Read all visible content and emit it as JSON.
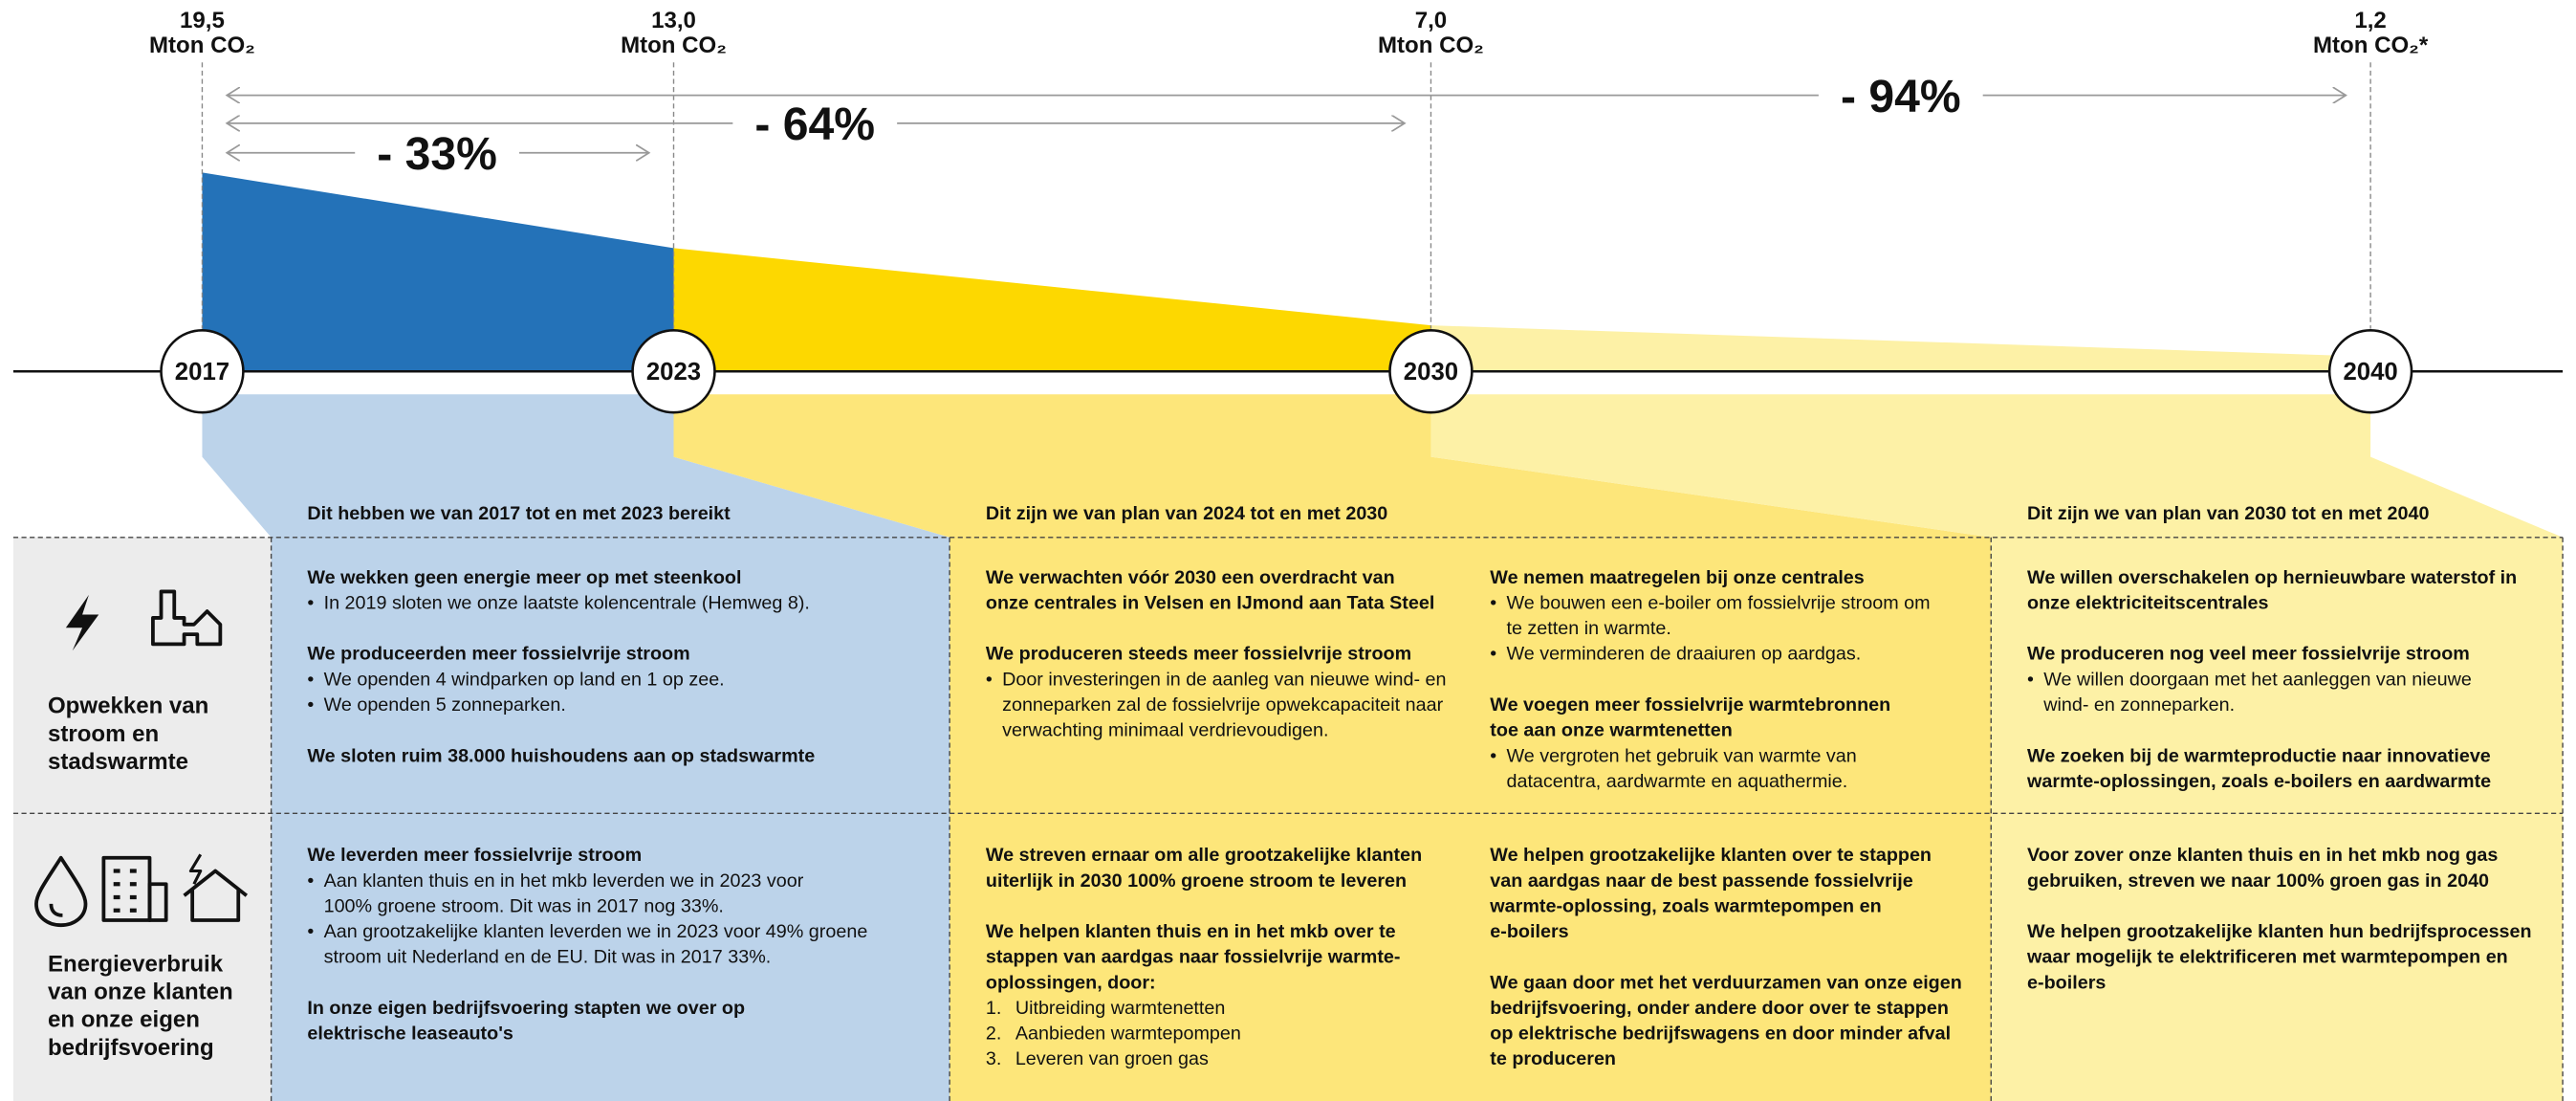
{
  "timeline": {
    "milestones": [
      {
        "year": "2017",
        "value": "19,5",
        "unit": "Mton CO₂"
      },
      {
        "year": "2023",
        "value": "13,0",
        "unit": "Mton CO₂"
      },
      {
        "year": "2030",
        "value": "7,0",
        "unit": "Mton CO₂"
      },
      {
        "year": "2040",
        "value": "1,2",
        "unit": "Mton CO₂*"
      }
    ],
    "reductions": [
      "- 33%",
      "- 64%",
      "- 94%"
    ]
  },
  "headings": [
    "Dit hebben we van 2017 tot en met 2023 bereikt",
    "Dit zijn we van plan van 2024 tot en met 2030",
    "Dit zijn we van plan van 2030 tot en met 2040"
  ],
  "rows": [
    {
      "label": [
        "Opwekken van",
        "stroom en",
        "stadswarmte"
      ],
      "cells": [
        [
          {
            "title": [
              "We wekken geen energie meer op met steenkool"
            ],
            "items": [
              {
                "lines": [
                  "In 2019 sloten we onze laatste kolencentrale (Hemweg 8)."
                ]
              }
            ]
          },
          {
            "title": [
              "We produceerden meer fossielvrije stroom"
            ],
            "items": [
              {
                "lines": [
                  "We openden 4 windparken op land en 1 op zee."
                ]
              },
              {
                "lines": [
                  "We openden 5 zonneparken."
                ]
              }
            ]
          },
          {
            "title": [
              "We sloten ruim 38.000 huishoudens aan op stadswarmte"
            ],
            "items": []
          }
        ],
        [
          {
            "title": [
              "We verwachten vóór 2030 een overdracht van",
              "onze centrales in Velsen en IJmond aan Tata Steel"
            ],
            "items": []
          },
          {
            "title": [
              "We produceren steeds meer fossielvrije stroom"
            ],
            "items": [
              {
                "lines": [
                  "Door investeringen in de aanleg van nieuwe wind- en",
                  "zonneparken zal de fossielvrije opwekcapaciteit naar",
                  "verwachting minimaal verdrievoudigen."
                ]
              }
            ]
          }
        ],
        [
          {
            "title": [
              "We nemen maatregelen bij onze centrales"
            ],
            "items": [
              {
                "lines": [
                  "We bouwen een e-boiler om fossielvrije stroom om",
                  "te zetten in warmte."
                ]
              },
              {
                "lines": [
                  "We verminderen de draaiuren op aardgas."
                ]
              }
            ]
          },
          {
            "title": [
              "We voegen meer fossielvrije warmtebronnen",
              "toe aan onze warmtenetten"
            ],
            "items": [
              {
                "lines": [
                  "We vergroten het gebruik van warmte van",
                  "datacentra, aardwarmte en aquathermie."
                ]
              }
            ]
          }
        ],
        [
          {
            "title": [
              "We willen overschakelen op hernieuwbare waterstof in",
              "onze elektriciteitscentrales"
            ],
            "items": []
          },
          {
            "title": [
              "We produceren nog veel meer fossielvrije stroom"
            ],
            "items": [
              {
                "lines": [
                  "We willen doorgaan met het aanleggen van nieuwe",
                  "wind- en zonneparken."
                ]
              }
            ]
          },
          {
            "title": [
              "We zoeken bij de warmteproductie naar innovatieve",
              "warmte-oplossingen, zoals e-boilers en aardwarmte"
            ],
            "items": []
          }
        ]
      ]
    },
    {
      "label": [
        "Energieverbruik",
        "van onze klanten",
        "en onze eigen",
        "bedrijfsvoering"
      ],
      "cells": [
        [
          {
            "title": [
              "We leverden meer fossielvrije stroom"
            ],
            "items": [
              {
                "lines": [
                  "Aan klanten thuis en in het mkb leverden we in 2023 voor",
                  "100% groene stroom. Dit was in 2017 nog 33%."
                ]
              },
              {
                "lines": [
                  "Aan grootzakelijke klanten leverden we in 2023 voor 49% groene",
                  "stroom uit Nederland en de EU. Dit was in 2017 33%."
                ]
              }
            ]
          },
          {
            "title": [
              "In onze eigen bedrijfsvoering stapten we over op",
              "elektrische leaseauto's"
            ],
            "items": []
          }
        ],
        [
          {
            "title": [
              "We streven ernaar om alle grootzakelijke klanten",
              "uiterlijk in 2030 100% groene stroom te leveren"
            ],
            "items": []
          },
          {
            "title": [
              "We helpen klanten thuis en in het mkb over te",
              "stappen van aardgas naar fossielvrije warmte-",
              "oplossingen, door:"
            ],
            "items": [
              {
                "num": "1.",
                "lines": [
                  "Uitbreiding warmtenetten"
                ]
              },
              {
                "num": "2.",
                "lines": [
                  "Aanbieden warmtepompen"
                ]
              },
              {
                "num": "3.",
                "lines": [
                  "Leveren van groen gas"
                ]
              }
            ]
          }
        ],
        [
          {
            "title": [
              "We helpen grootzakelijke klanten over te stappen",
              "van aardgas naar de best passende fossielvrije",
              "warmte-oplossing, zoals warmtepompen en",
              "e-boilers"
            ],
            "items": []
          },
          {
            "title": [
              "We gaan door met het verduurzamen van onze eigen",
              "bedrijfsvoering, onder andere door over te stappen",
              "op elektrische bedrijfswagens en door minder afval",
              "te produceren"
            ],
            "items": []
          }
        ],
        [
          {
            "title": [
              "Voor zover onze klanten thuis en in het mkb nog gas",
              "gebruiken, streven we naar 100% groen gas in 2040"
            ],
            "items": []
          },
          {
            "title": [
              "We helpen grootzakelijke klanten hun bedrijfsprocessen",
              "waar mogelijk te elektrificeren met warmtepompen en",
              "e-boilers"
            ],
            "items": []
          }
        ]
      ]
    }
  ]
}
